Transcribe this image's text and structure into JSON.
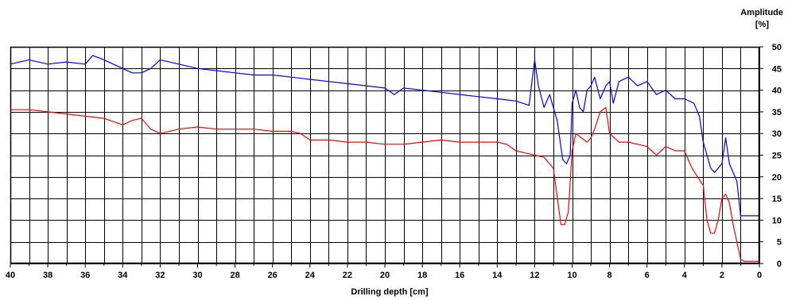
{
  "chart_data": {
    "type": "line",
    "title": "",
    "xlabel": "Drilling depth [cm]",
    "ylabel_line1": "Amplitude",
    "ylabel_line2": "[%]",
    "xlim": [
      40,
      0
    ],
    "ylim": [
      0,
      50
    ],
    "x_ticks": [
      40,
      38,
      36,
      34,
      32,
      30,
      28,
      26,
      24,
      22,
      20,
      18,
      16,
      14,
      12,
      10,
      8,
      6,
      4,
      2,
      0
    ],
    "y_ticks": [
      0,
      5,
      10,
      15,
      20,
      25,
      30,
      35,
      40,
      45,
      50
    ],
    "grid": true,
    "series": [
      {
        "color": "#0000ff",
        "x": [
          40,
          39,
          38,
          37,
          36,
          35.6,
          35,
          34,
          33.5,
          33,
          32.5,
          32,
          31,
          30,
          29,
          28,
          27,
          26,
          25,
          24,
          23,
          22,
          21,
          20,
          19.5,
          19,
          18,
          17,
          16,
          15,
          14,
          13,
          12.3,
          12,
          11.8,
          11.5,
          11.2,
          11,
          10.8,
          10.5,
          10.3,
          10.1,
          10,
          9.8,
          9.6,
          9.4,
          9.2,
          9,
          8.8,
          8.5,
          8.2,
          8,
          7.8,
          7.5,
          7,
          6.5,
          6,
          5.5,
          5,
          4.5,
          4,
          3.5,
          3.2,
          3,
          2.8,
          2.6,
          2.4,
          2.2,
          2,
          1.8,
          1.6,
          1.4,
          1.2,
          1.1,
          1,
          0.8,
          0.5,
          0.3,
          0
        ],
        "values": [
          46,
          47,
          46,
          46.5,
          46,
          48,
          47,
          45,
          44,
          44,
          45,
          47,
          46,
          45,
          44.5,
          44,
          43.5,
          43.5,
          43,
          42.5,
          42,
          41.5,
          41,
          40.5,
          39,
          40.5,
          40,
          39.5,
          39,
          38.5,
          38,
          37.5,
          36.5,
          47,
          41,
          36,
          39,
          36,
          33,
          24,
          23,
          25,
          37,
          40,
          36,
          35,
          40,
          41,
          43,
          38,
          41,
          42,
          37,
          42,
          43,
          41,
          42,
          39,
          40,
          38,
          38,
          37,
          34,
          28,
          25,
          22,
          21,
          22,
          23,
          29,
          23,
          21,
          19,
          15,
          11,
          11,
          11,
          11,
          11
        ]
      },
      {
        "color": "#ff0000",
        "x": [
          40,
          39,
          38,
          37,
          36,
          35,
          34,
          33.5,
          33,
          32.5,
          32,
          31,
          30,
          29,
          28,
          27,
          26,
          25,
          24.5,
          24,
          23,
          22,
          21,
          20,
          19,
          18,
          17,
          16,
          15,
          14,
          13.5,
          13,
          12.5,
          12,
          11.5,
          11,
          10.6,
          10.4,
          10.2,
          10,
          9.8,
          9.5,
          9.2,
          9,
          8.8,
          8.5,
          8.2,
          8,
          7.5,
          7,
          6.5,
          6,
          5.5,
          5,
          4.5,
          4,
          3.6,
          3.3,
          3,
          2.8,
          2.6,
          2.4,
          2.2,
          2,
          1.8,
          1.6,
          1.4,
          1.2,
          1,
          0.8,
          0.5,
          0.3,
          0
        ],
        "values": [
          35.5,
          35.5,
          35,
          34.5,
          34,
          33.5,
          32,
          33,
          33.5,
          31,
          30,
          31,
          31.5,
          31,
          31,
          31,
          30.5,
          30.5,
          30,
          28.5,
          28.5,
          28,
          28,
          27.5,
          27.5,
          28,
          28.5,
          28,
          28,
          28,
          27.5,
          26,
          25.5,
          25,
          24.5,
          22,
          9,
          9,
          12,
          26,
          30,
          29,
          28,
          29,
          31,
          35,
          36,
          30,
          28,
          28,
          27.5,
          27,
          25,
          27,
          26,
          26,
          22,
          20,
          18,
          10,
          7,
          7,
          10,
          15,
          16,
          14,
          9,
          5,
          1,
          0.5,
          0.5,
          0.5,
          0.5
        ]
      }
    ]
  }
}
